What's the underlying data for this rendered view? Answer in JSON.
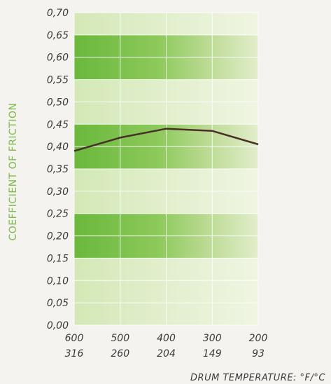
{
  "chart_data": {
    "type": "line",
    "title": "",
    "ylabel": "COEFFICIENT OF FRICTION",
    "xlabel": "DRUM TEMPERATURE:  °F/°C",
    "ylim": [
      0,
      0.7
    ],
    "y_ticks": [
      "0,00",
      "0,05",
      "0,10",
      "0,15",
      "0,20",
      "0,25",
      "0,30",
      "0,35",
      "0,40",
      "0,45",
      "0,50",
      "0,55",
      "0,60",
      "0,65",
      "0,70"
    ],
    "x_ticks_f": [
      "600",
      "500",
      "400",
      "300",
      "200"
    ],
    "x_ticks_c": [
      "316",
      "260",
      "204",
      "149",
      "93"
    ],
    "x": [
      600,
      500,
      400,
      300,
      200
    ],
    "series": [
      {
        "values": [
          0.39,
          0.42,
          0.44,
          0.435,
          0.405
        ]
      }
    ],
    "grid": true,
    "line_color": "#4a2e2a",
    "band_colors": [
      "#7cc24a",
      "#c9e0a3",
      "#eef3dc"
    ]
  }
}
